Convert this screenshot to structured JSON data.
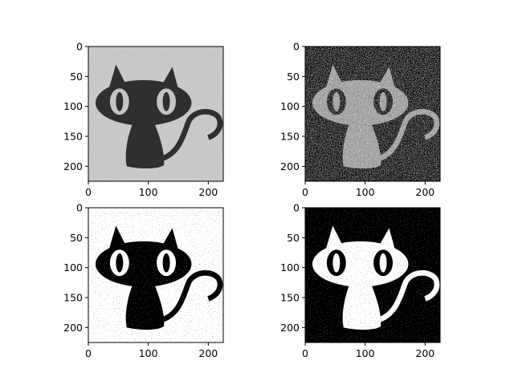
{
  "figure": {
    "panels": [
      {
        "id": "top-left",
        "subject": "cat silhouette with grey noisy background",
        "style": "grey",
        "x_ticks": [
          "0",
          "100",
          "200"
        ],
        "y_ticks": [
          "0",
          "50",
          "100",
          "150",
          "200"
        ]
      },
      {
        "id": "top-right",
        "subject": "noisy black and white cat",
        "style": "noise",
        "x_ticks": [
          "0",
          "100",
          "200"
        ],
        "y_ticks": [
          "0",
          "50",
          "100",
          "150",
          "200"
        ]
      },
      {
        "id": "bottom-left",
        "subject": "binary cat black on white",
        "style": "binary",
        "x_ticks": [
          "0",
          "100",
          "200"
        ],
        "y_ticks": [
          "0",
          "50",
          "100",
          "150",
          "200"
        ]
      },
      {
        "id": "bottom-right",
        "subject": "inverted binary cat white on black",
        "style": "inverted",
        "x_ticks": [
          "0",
          "100",
          "200"
        ],
        "y_ticks": [
          "0",
          "50",
          "100",
          "150",
          "200"
        ]
      }
    ],
    "colors": {
      "background": "#ffffff",
      "grey_bg": "#bdbdbd",
      "cat_dark": "#2f2f2f",
      "black": "#000000",
      "white": "#ffffff"
    }
  }
}
